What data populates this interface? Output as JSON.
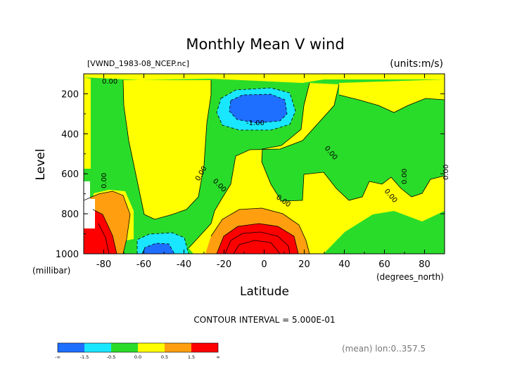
{
  "chart_data": {
    "type": "heatmap",
    "title": "Monthly Mean V wind",
    "file_label": "[VWND_1983-08_NCEP.nc]",
    "units_label": "(units:m/s)",
    "ylabel": "Level",
    "yunit": "(millibar)",
    "xlabel": "Latitude",
    "xunit": "(degrees_north)",
    "x_ticks": [
      "-80",
      "-60",
      "-40",
      "-20",
      "0",
      "20",
      "40",
      "60",
      "80"
    ],
    "x_tick_values": [
      -80,
      -60,
      -40,
      -20,
      0,
      20,
      40,
      60,
      80
    ],
    "y_ticks": [
      "200",
      "400",
      "600",
      "800",
      "1000"
    ],
    "y_tick_values": [
      200,
      400,
      600,
      800,
      1000
    ],
    "xlim": [
      -90,
      90
    ],
    "ylim": [
      1000,
      100
    ],
    "contour_interval_text": "CONTOUR INTERVAL = 5.000E-01",
    "mean_note": "(mean) lon:0..357.5",
    "contour_labels": [
      "0.00",
      "-1.00",
      "0.00",
      "0.00",
      "0.00",
      "0.00",
      "0.00",
      "0.00",
      "0.00",
      "0.00"
    ],
    "colorbar": {
      "colors": [
        "#1e6eff",
        "#19e6ff",
        "#2adc2a",
        "#ffff00",
        "#ff9f0f",
        "#ff0000"
      ],
      "labels": [
        "-∞",
        "-1.5",
        "-0.5",
        "0.0",
        "0.5",
        "1.5",
        "∞"
      ]
    }
  }
}
